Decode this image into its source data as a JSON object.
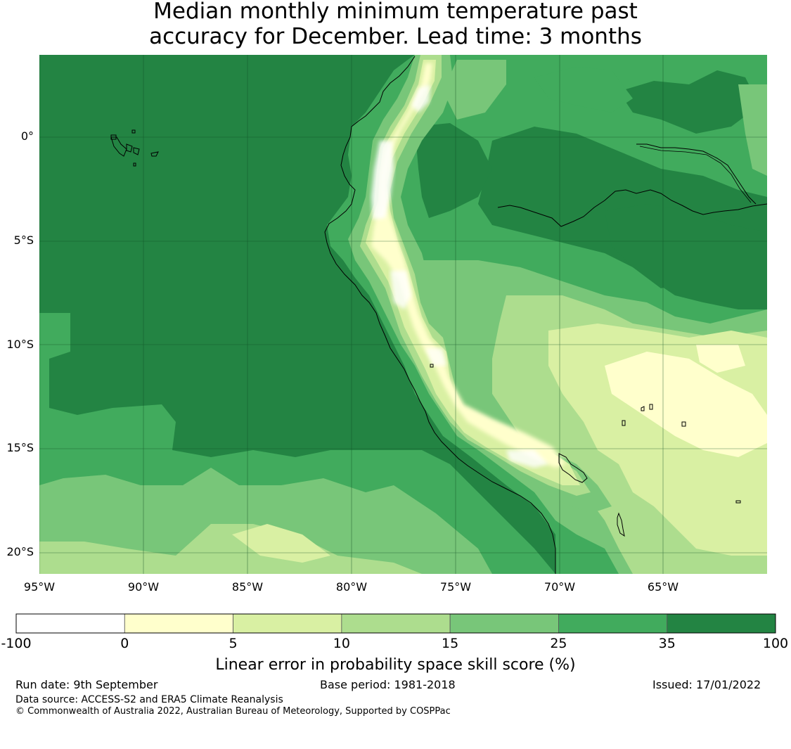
{
  "title": {
    "line1": "Median monthly minimum temperature past",
    "line2": "accuracy for December. Lead time: 3 months"
  },
  "axes": {
    "lat_labels": [
      "0°",
      "5°S",
      "10°S",
      "15°S",
      "20°S"
    ],
    "lon_labels": [
      "95°W",
      "90°W",
      "85°W",
      "80°W",
      "75°W",
      "70°W",
      "65°W"
    ]
  },
  "chart_data": {
    "type": "heatmap",
    "title": "Median monthly minimum temperature past accuracy for December. Lead time: 3 months",
    "variable": "Linear error in probability space skill score (%)",
    "extent": {
      "lon": [
        -95,
        -60
      ],
      "lat": [
        -21,
        4
      ]
    },
    "gridlines": true,
    "bin_edges": [
      -100,
      0,
      5,
      10,
      15,
      25,
      35,
      100
    ],
    "bin_colors": [
      "#ffffff",
      "#ffffcc",
      "#d9f0a3",
      "#addd8e",
      "#78c679",
      "#41ab5d",
      "#238443"
    ],
    "legend_position": "bottom"
  },
  "colorbar": {
    "tick_labels": [
      "-100",
      "0",
      "5",
      "10",
      "15",
      "25",
      "35",
      "100"
    ],
    "title": "Linear error in probability space skill score (%)"
  },
  "footer": {
    "run_date": "Run date: 9th September",
    "base_period": "Base period: 1981-2018",
    "issued": "Issued: 17/01/2022",
    "data_source": "Data source: ACCESS-S2 and ERA5 Climate Reanalysis",
    "copyright": "© Commonwealth of Australia 2022, Australian Bureau of Meteorology, Supported by COSPPac"
  }
}
